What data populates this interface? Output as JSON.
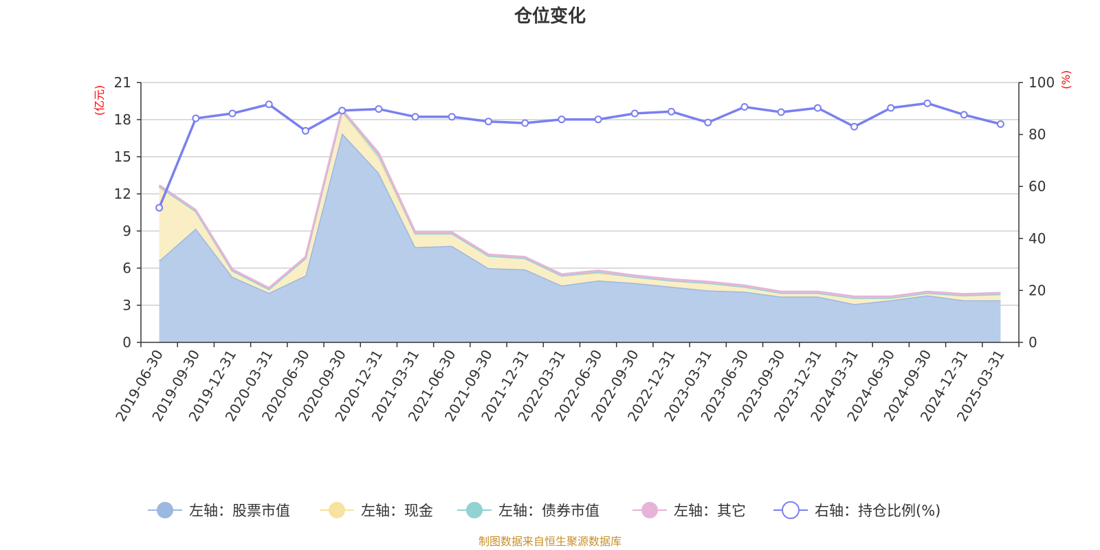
{
  "chart_data": {
    "type": "area",
    "title": "仓位变化",
    "left_axis_unit": "(亿元)",
    "right_axis_unit": "(%)",
    "left_ylim": [
      0,
      21
    ],
    "left_ticks": [
      "0",
      "3",
      "6",
      "9",
      "12",
      "15",
      "18",
      "21"
    ],
    "right_ylim": [
      0,
      100
    ],
    "right_ticks": [
      "0",
      "20",
      "40",
      "60",
      "80",
      "100"
    ],
    "grid": true,
    "legend_position": "bottom",
    "categories": [
      "2019-06-30",
      "2019-09-30",
      "2019-12-31",
      "2020-03-31",
      "2020-06-30",
      "2020-09-30",
      "2020-12-31",
      "2021-03-31",
      "2021-06-30",
      "2021-09-30",
      "2021-12-31",
      "2022-03-31",
      "2022-06-30",
      "2022-09-30",
      "2022-12-31",
      "2023-03-31",
      "2023-06-30",
      "2023-09-30",
      "2023-12-31",
      "2024-03-31",
      "2024-06-30",
      "2024-09-30",
      "2024-12-31",
      "2025-03-31"
    ],
    "series": [
      {
        "name": "左轴：股票市值",
        "axis": "left",
        "kind": "stacked-area",
        "color": "#9bb8e0",
        "fill": "#b8cdea",
        "values": [
          6.6,
          9.2,
          5.3,
          4.0,
          5.4,
          16.9,
          13.7,
          7.7,
          7.8,
          6.0,
          5.9,
          4.6,
          5.0,
          4.8,
          4.5,
          4.2,
          4.1,
          3.7,
          3.7,
          3.1,
          3.4,
          3.8,
          3.4,
          3.4
        ]
      },
      {
        "name": "左轴：现金",
        "axis": "left",
        "kind": "stacked-area",
        "color": "#f7e2a0",
        "fill": "#faeec5",
        "values": [
          6.0,
          1.4,
          0.5,
          0.3,
          1.4,
          1.8,
          1.2,
          1.1,
          1.0,
          1.0,
          0.9,
          0.8,
          0.6,
          0.5,
          0.5,
          0.6,
          0.4,
          0.3,
          0.3,
          0.5,
          0.2,
          0.2,
          0.4,
          0.5
        ]
      },
      {
        "name": "左轴：债券市值",
        "axis": "left",
        "kind": "stacked-area",
        "color": "#92d2d2",
        "fill": "#b3e0e0",
        "values": [
          0,
          0,
          0,
          0,
          0,
          0,
          0.3,
          0,
          0,
          0,
          0,
          0,
          0.1,
          0,
          0,
          0,
          0,
          0,
          0,
          0,
          0,
          0,
          0,
          0
        ]
      },
      {
        "name": "左轴：其它",
        "axis": "left",
        "kind": "stacked-area",
        "color": "#e6b4d8",
        "fill": "#f0cfe6",
        "values": [
          0.1,
          0.1,
          0.1,
          0.1,
          0.1,
          0.1,
          0.1,
          0.1,
          0.1,
          0.1,
          0.1,
          0.1,
          0.1,
          0.1,
          0.1,
          0.1,
          0.1,
          0.1,
          0.1,
          0.1,
          0.1,
          0.1,
          0.1,
          0.1
        ]
      },
      {
        "name": "右轴：持仓比例(%)",
        "axis": "right",
        "kind": "line",
        "color": "#7a7ff0",
        "values": [
          51.8,
          86.2,
          88.1,
          91.6,
          81.4,
          89.2,
          89.8,
          86.8,
          86.8,
          85.0,
          84.4,
          85.8,
          85.8,
          88.1,
          88.8,
          84.6,
          90.6,
          88.6,
          90.2,
          83.0,
          90.2,
          92.0,
          87.6,
          84.0
        ]
      }
    ],
    "source": "制图数据来自恒生聚源数据库"
  }
}
